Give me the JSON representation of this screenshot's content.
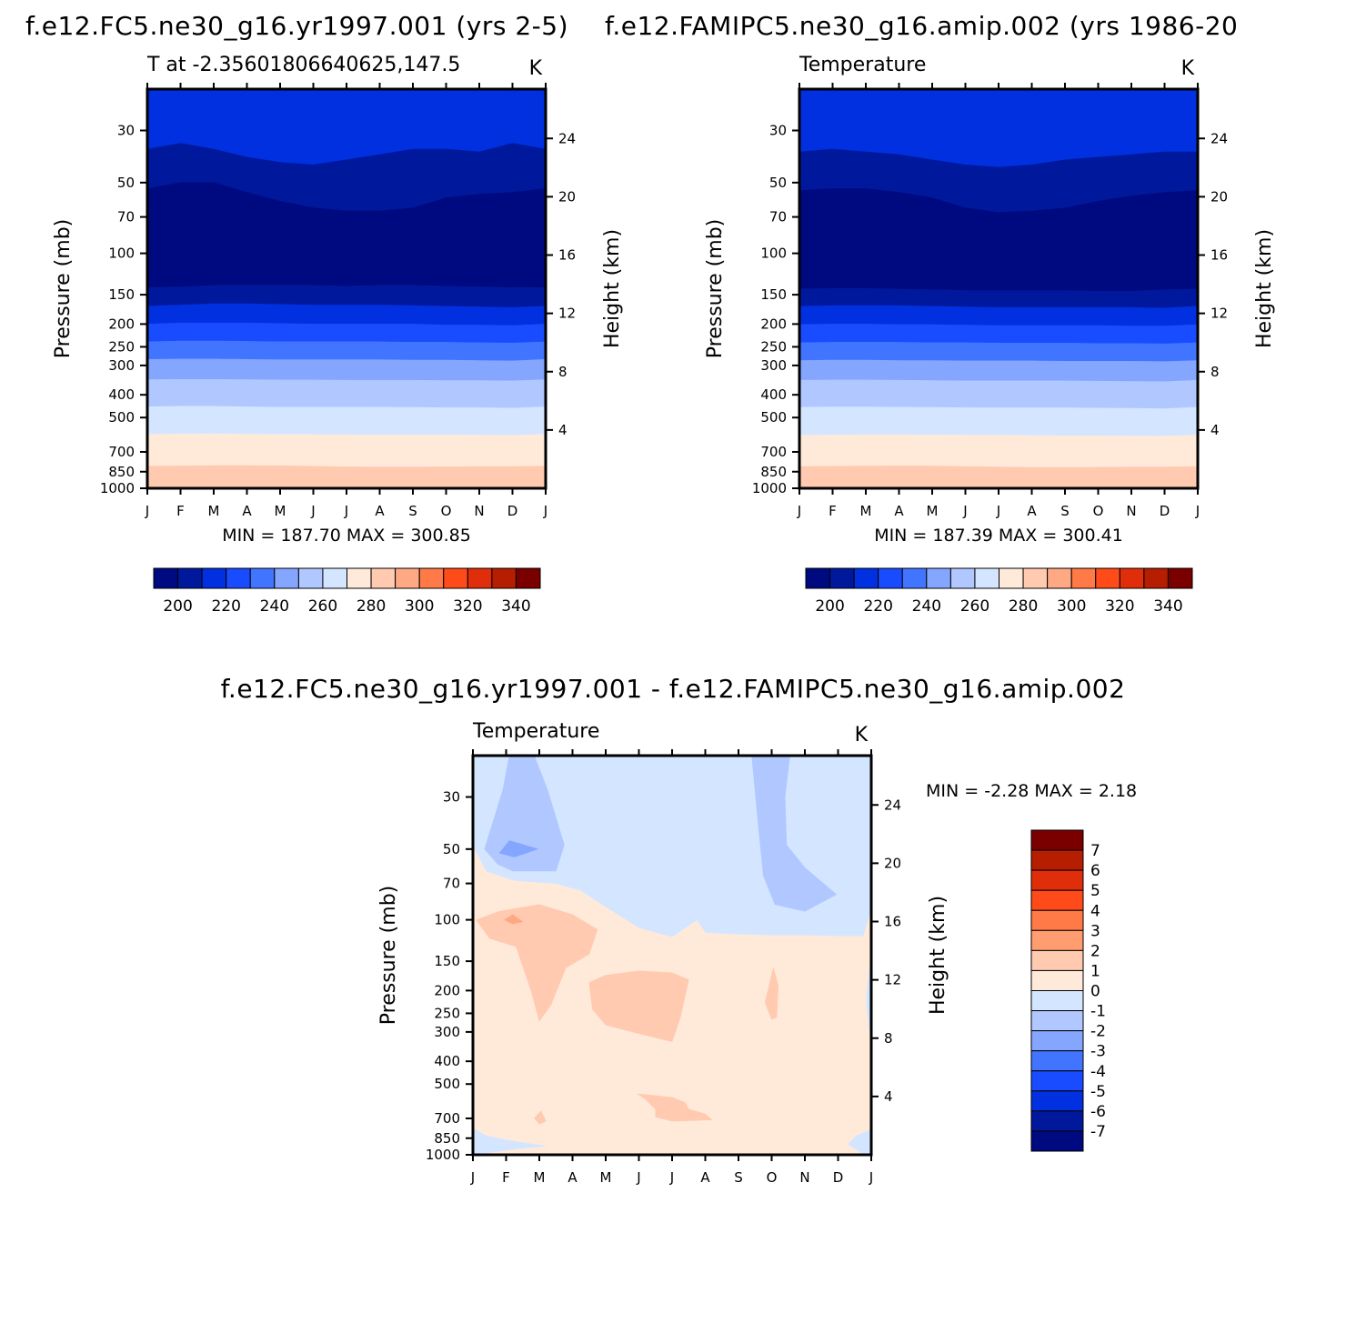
{
  "titles": {
    "left_case": "f.e12.FC5.ne30_g16.yr1997.001 (yrs 2-5)",
    "right_case": "f.e12.FAMIPC5.ne30_g16.amip.002 (yrs 1986-20",
    "diff_case": "f.e12.FC5.ne30_g16.yr1997.001 - f.e12.FAMIPC5.ne30_g16.amip.002"
  },
  "chart_data": [
    {
      "type": "heatmap",
      "id": "panel-test",
      "title": "T at -2.35601806640625,147.5",
      "units": "K",
      "ylabel": "Pressure (mb)",
      "ylabel_right": "Height (km)",
      "months": [
        "J",
        "F",
        "M",
        "A",
        "M",
        "J",
        "J",
        "A",
        "S",
        "O",
        "N",
        "D",
        "J"
      ],
      "pressure_ticks": [
        30,
        50,
        70,
        100,
        150,
        200,
        250,
        300,
        400,
        500,
        700,
        850,
        1000
      ],
      "height_ticks": [
        24,
        20,
        16,
        12,
        8,
        4
      ],
      "ylim": [
        20,
        1000
      ],
      "stats": "MIN = 187.70 MAX = 300.85",
      "contour_levels": [
        195,
        205,
        215,
        225,
        235,
        245,
        255,
        265,
        275,
        285,
        295
      ],
      "contour_pressures": [
        [
          36,
          34,
          36,
          39,
          41,
          42,
          40,
          38,
          36,
          36,
          37,
          34,
          36
        ],
        [
          53,
          50,
          50,
          55,
          60,
          64,
          66,
          66,
          64,
          58,
          56,
          55,
          53
        ],
        [
          140,
          139,
          137,
          137,
          137,
          137,
          138,
          137,
          137,
          138,
          139,
          140,
          140
        ],
        [
          168,
          166,
          164,
          164,
          165,
          166,
          166,
          166,
          167,
          168,
          169,
          170,
          168
        ],
        [
          200,
          198,
          198,
          198,
          199,
          200,
          200,
          200,
          200,
          202,
          202,
          203,
          200
        ],
        [
          238,
          236,
          236,
          237,
          238,
          238,
          238,
          238,
          239,
          239,
          240,
          241,
          238
        ],
        [
          283,
          282,
          282,
          283,
          284,
          284,
          284,
          284,
          285,
          285,
          286,
          287,
          283
        ],
        [
          345,
          344,
          344,
          345,
          346,
          346,
          347,
          347,
          347,
          348,
          348,
          349,
          345
        ],
        [
          450,
          448,
          448,
          450,
          452,
          452,
          452,
          452,
          453,
          454,
          454,
          456,
          450
        ],
        [
          590,
          588,
          587,
          589,
          590,
          591,
          592,
          593,
          593,
          593,
          594,
          596,
          590
        ],
        [
          805,
          803,
          800,
          800,
          802,
          806,
          810,
          812,
          812,
          810,
          808,
          808,
          805
        ]
      ],
      "colorbar": {
        "labels": [
          "200",
          "220",
          "240",
          "260",
          "280",
          "300",
          "320",
          "340"
        ],
        "colors": [
          "#000a80",
          "#00199c",
          "#0030e0",
          "#1a4cff",
          "#4275ff",
          "#85a6ff",
          "#b0c8ff",
          "#d4e6ff",
          "#ffeada",
          "#ffcab0",
          "#ffa984",
          "#ff7a46",
          "#ff4b1a",
          "#e02e0a",
          "#b51e00",
          "#7a0000"
        ]
      }
    },
    {
      "type": "heatmap",
      "id": "panel-control",
      "title": "Temperature",
      "units": "K",
      "ylabel": "Pressure (mb)",
      "ylabel_right": "Height (km)",
      "months": [
        "J",
        "F",
        "M",
        "A",
        "M",
        "J",
        "J",
        "A",
        "S",
        "O",
        "N",
        "D",
        "J"
      ],
      "pressure_ticks": [
        30,
        50,
        70,
        100,
        150,
        200,
        250,
        300,
        400,
        500,
        700,
        850,
        1000
      ],
      "height_ticks": [
        24,
        20,
        16,
        12,
        8,
        4
      ],
      "ylim": [
        20,
        1000
      ],
      "stats": "MIN = 187.39 MAX = 300.41",
      "contour_levels": [
        195,
        205,
        215,
        225,
        235,
        245,
        255,
        265,
        275,
        285,
        295
      ],
      "contour_pressures": [
        [
          37,
          36,
          37,
          38,
          40,
          42,
          43,
          42,
          40,
          39,
          38,
          37,
          37
        ],
        [
          54,
          53,
          53,
          55,
          58,
          64,
          67,
          66,
          64,
          60,
          57,
          55,
          54
        ],
        [
          142,
          141,
          141,
          142,
          143,
          144,
          144,
          144,
          144,
          145,
          145,
          143,
          142
        ],
        [
          168,
          167,
          167,
          167,
          168,
          169,
          170,
          170,
          170,
          170,
          170,
          171,
          168
        ],
        [
          201,
          200,
          200,
          201,
          201,
          202,
          203,
          203,
          203,
          203,
          204,
          204,
          201
        ],
        [
          240,
          239,
          239,
          239,
          240,
          240,
          241,
          241,
          241,
          242,
          242,
          243,
          240
        ],
        [
          286,
          285,
          285,
          286,
          286,
          287,
          287,
          287,
          288,
          288,
          288,
          289,
          286
        ],
        [
          347,
          346,
          346,
          347,
          348,
          349,
          349,
          349,
          349,
          350,
          351,
          352,
          347
        ],
        [
          452,
          451,
          451,
          452,
          453,
          454,
          455,
          455,
          455,
          456,
          457,
          459,
          452
        ],
        [
          595,
          593,
          592,
          592,
          593,
          594,
          595,
          597,
          598,
          598,
          599,
          600,
          595
        ],
        [
          808,
          806,
          804,
          803,
          804,
          808,
          812,
          815,
          815,
          814,
          812,
          811,
          808
        ]
      ],
      "colorbar": {
        "labels": [
          "200",
          "220",
          "240",
          "260",
          "280",
          "300",
          "320",
          "340"
        ],
        "colors": [
          "#000a80",
          "#00199c",
          "#0030e0",
          "#1a4cff",
          "#4275ff",
          "#85a6ff",
          "#b0c8ff",
          "#d4e6ff",
          "#ffeada",
          "#ffcab0",
          "#ffa984",
          "#ff7a46",
          "#ff4b1a",
          "#e02e0a",
          "#b51e00",
          "#7a0000"
        ]
      }
    },
    {
      "type": "heatmap",
      "id": "panel-difference",
      "title": "Temperature",
      "units": "K",
      "ylabel": "Pressure (mb)",
      "ylabel_right": "Height (km)",
      "months": [
        "J",
        "F",
        "M",
        "A",
        "M",
        "J",
        "J",
        "A",
        "S",
        "O",
        "N",
        "D",
        "J"
      ],
      "pressure_ticks": [
        30,
        50,
        70,
        100,
        150,
        200,
        250,
        300,
        400,
        500,
        700,
        850,
        1000
      ],
      "height_ticks": [
        24,
        20,
        16,
        12,
        8,
        4
      ],
      "ylim": [
        20,
        1000
      ],
      "stats": "MIN = -2.28 MAX = 2.18",
      "background_color": "#ffeada",
      "regions": [
        {
          "level": "-1 to 0",
          "color": "#d4e6ff",
          "points": [
            [
              0.0,
              20
            ],
            [
              0.0,
              48
            ],
            [
              0.4,
              62
            ],
            [
              1.25,
              68
            ],
            [
              2.5,
              70
            ],
            [
              3.25,
              75
            ],
            [
              4.0,
              88
            ],
            [
              5.0,
              108
            ],
            [
              6.0,
              118
            ],
            [
              6.75,
              100
            ],
            [
              7.0,
              113
            ],
            [
              8.0,
              115
            ],
            [
              9.0,
              116
            ],
            [
              10.0,
              116
            ],
            [
              11.0,
              117
            ],
            [
              11.75,
              117
            ],
            [
              12.0,
              90
            ],
            [
              12.0,
              20
            ]
          ]
        },
        {
          "level": "-2 to -1",
          "color": "#b0c8ff",
          "points": [
            [
              0.35,
              50
            ],
            [
              0.9,
              28
            ],
            [
              1.1,
              20
            ],
            [
              1.85,
              20
            ],
            [
              2.25,
              28
            ],
            [
              2.75,
              48
            ],
            [
              2.5,
              62
            ],
            [
              1.2,
              62
            ],
            [
              0.75,
              58
            ]
          ]
        },
        {
          "level": "-3 to -2",
          "color": "#85a6ff",
          "points": [
            [
              0.8,
              52
            ],
            [
              1.1,
              46
            ],
            [
              1.95,
              50
            ],
            [
              1.25,
              54
            ]
          ]
        },
        {
          "level": "-2 to -1",
          "color": "#b0c8ff",
          "points": [
            [
              8.4,
              20
            ],
            [
              9.55,
              20
            ],
            [
              9.4,
              30
            ],
            [
              9.45,
              48
            ],
            [
              10.0,
              60
            ],
            [
              10.95,
              78
            ],
            [
              10.0,
              92
            ],
            [
              9.1,
              86
            ],
            [
              8.75,
              65
            ],
            [
              8.6,
              40
            ]
          ]
        },
        {
          "level": "-1 to 0",
          "color": "#d4e6ff",
          "points": [
            [
              0.0,
              770
            ],
            [
              0.4,
              830
            ],
            [
              1.1,
              870
            ],
            [
              2.2,
              920
            ],
            [
              1.4,
              940
            ],
            [
              0.0,
              1000
            ]
          ]
        },
        {
          "level": "-1 to 0",
          "color": "#d4e6ff",
          "points": [
            [
              11.3,
              900
            ],
            [
              11.55,
              830
            ],
            [
              12.0,
              780
            ],
            [
              12.0,
              1000
            ],
            [
              11.7,
              980
            ]
          ]
        },
        {
          "level": "-1 to 0",
          "color": "#d4e6ff",
          "points": [
            [
              11.95,
              160
            ],
            [
              11.85,
              220
            ],
            [
              11.95,
              300
            ],
            [
              12.0,
              300
            ],
            [
              12.0,
              160
            ]
          ]
        },
        {
          "level": "1 to 2",
          "color": "#ffcab0",
          "points": [
            [
              0.1,
              100
            ],
            [
              0.8,
              92
            ],
            [
              2.0,
              86
            ],
            [
              3.0,
              95
            ],
            [
              3.75,
              110
            ],
            [
              3.5,
              140
            ],
            [
              2.8,
              160
            ],
            [
              2.35,
              230
            ],
            [
              2.0,
              270
            ],
            [
              1.75,
              200
            ],
            [
              1.3,
              130
            ],
            [
              0.5,
              120
            ]
          ]
        },
        {
          "level": "2 to 3",
          "color": "#ffa984",
          "points": [
            [
              0.95,
              100
            ],
            [
              1.2,
              95
            ],
            [
              1.5,
              102
            ],
            [
              1.2,
              104
            ]
          ]
        },
        {
          "level": "1 to 2",
          "color": "#ffcab0",
          "points": [
            [
              3.5,
              185
            ],
            [
              4.0,
              172
            ],
            [
              5.0,
              165
            ],
            [
              6.0,
              168
            ],
            [
              6.5,
              180
            ],
            [
              6.25,
              260
            ],
            [
              6.0,
              330
            ],
            [
              5.0,
              305
            ],
            [
              4.0,
              280
            ],
            [
              3.6,
              240
            ]
          ]
        },
        {
          "level": "1 to 2",
          "color": "#ffcab0",
          "points": [
            [
              8.8,
              225
            ],
            [
              9.05,
              160
            ],
            [
              9.2,
              190
            ],
            [
              9.15,
              260
            ],
            [
              9.0,
              265
            ]
          ]
        },
        {
          "level": "1 to 2",
          "color": "#ffcab0",
          "points": [
            [
              4.95,
              550
            ],
            [
              5.5,
              560
            ],
            [
              6.0,
              570
            ],
            [
              6.4,
              600
            ],
            [
              6.5,
              640
            ],
            [
              7.0,
              670
            ],
            [
              7.2,
              710
            ],
            [
              6.0,
              720
            ],
            [
              5.5,
              690
            ],
            [
              5.5,
              640
            ],
            [
              5.2,
              580
            ]
          ]
        },
        {
          "level": "1 to 2",
          "color": "#ffcab0",
          "points": [
            [
              1.85,
              700
            ],
            [
              2.05,
              650
            ],
            [
              2.2,
              720
            ],
            [
              2.0,
              740
            ]
          ]
        }
      ],
      "colorbar": {
        "labels": [
          "7",
          "6",
          "5",
          "4",
          "3",
          "2",
          "1",
          "0",
          "-1",
          "-2",
          "-3",
          "-4",
          "-5",
          "-6",
          "-7"
        ],
        "colors": [
          "#7a0000",
          "#b51e00",
          "#e02e0a",
          "#ff4b1a",
          "#ff7a46",
          "#ff9d70",
          "#ffcab0",
          "#ffeada",
          "#d4e6ff",
          "#b0c8ff",
          "#85a6ff",
          "#4275ff",
          "#1a4cff",
          "#0030e0",
          "#00199c",
          "#000a80"
        ]
      }
    }
  ]
}
